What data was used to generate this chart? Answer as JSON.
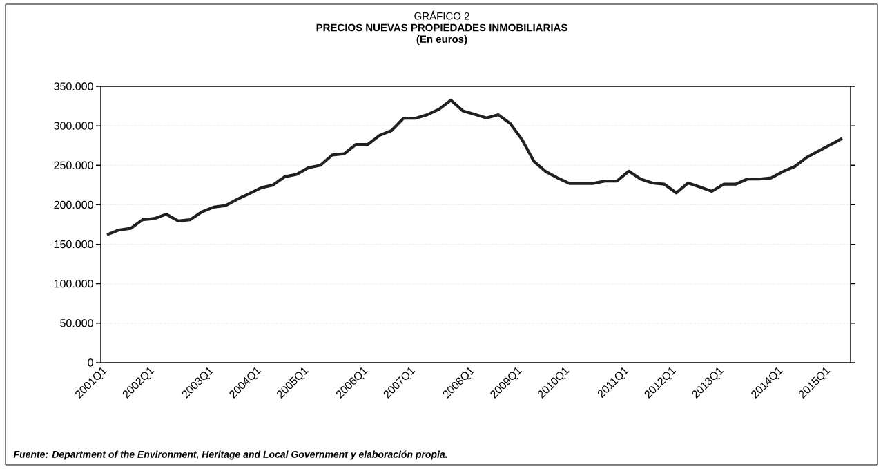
{
  "chart_data": {
    "type": "line",
    "title": "PRECIOS NUEVAS PROPIEDADES INMOBILIARIAS",
    "subtitle": "(En euros)",
    "annotations": [
      "GRÁFICO 2",
      "Fuente: Department of the Environment, Heritage and Local Government y elaboración propia."
    ],
    "categories": [
      "2001Q1",
      null,
      null,
      null,
      "2002Q1",
      null,
      null,
      null,
      null,
      "2003Q1",
      null,
      null,
      null,
      "2004Q1",
      null,
      null,
      null,
      "2005Q1",
      null,
      null,
      null,
      null,
      "2006Q1",
      null,
      null,
      null,
      "2007Q1",
      null,
      null,
      null,
      null,
      "2008Q1",
      null,
      null,
      null,
      "2009Q1",
      null,
      null,
      null,
      "2010Q1",
      null,
      null,
      null,
      null,
      "2011Q1",
      null,
      null,
      null,
      "2012Q1",
      null,
      null,
      null,
      "2013Q1",
      null,
      null,
      null,
      null,
      "2014Q1",
      null,
      null,
      null,
      "2015Q1",
      null
    ],
    "series": [
      {
        "color": "#231f20",
        "values": [
          162000,
          168000,
          170000,
          181000,
          182500,
          188000,
          179500,
          181000,
          191000,
          197000,
          199000,
          207000,
          214000,
          221500,
          225000,
          235500,
          238500,
          247000,
          250000,
          263000,
          264500,
          276500,
          276500,
          288000,
          294000,
          309500,
          309500,
          314000,
          321000,
          332500,
          319000,
          314500,
          310000,
          314000,
          303000,
          282500,
          255000,
          242000,
          234000,
          227000,
          227000,
          227000,
          230000,
          230000,
          242500,
          232500,
          227500,
          226000,
          215000,
          227500,
          222500,
          217000,
          226000,
          226000,
          232500,
          232500,
          234000,
          242000,
          248500,
          260000,
          268000,
          276000,
          284000
        ]
      }
    ],
    "ylim": [
      0,
      350000
    ],
    "yticks": [
      0,
      {
        "value": 50000,
        "label": "50.000"
      },
      {
        "value": 100000,
        "label": "100.000"
      },
      {
        "value": 150000,
        "label": "150.000"
      },
      {
        "value": 200000,
        "label": "200.000"
      },
      {
        "value": 250000,
        "label": "250.000"
      },
      {
        "value": 300000,
        "label": "300.000"
      },
      {
        "value": 350000,
        "label": "350.000"
      }
    ],
    "grid": "y",
    "marker": "none",
    "line_style": "solid"
  }
}
